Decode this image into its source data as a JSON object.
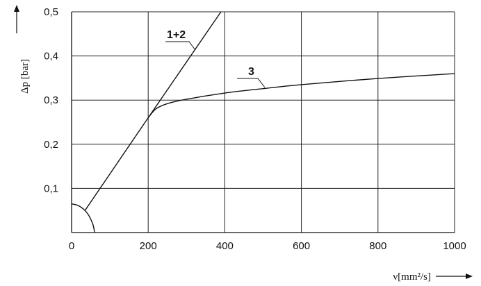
{
  "chart_data": {
    "type": "line",
    "title": "",
    "xlabel": "ν[mm²/s]",
    "ylabel": "Δp [bar]",
    "xlim": [
      0,
      1000
    ],
    "ylim": [
      0,
      0.5
    ],
    "x_ticks": [
      0,
      200,
      400,
      600,
      800,
      1000
    ],
    "x_tick_labels": [
      "0",
      "200",
      "400",
      "600",
      "800",
      "1000"
    ],
    "y_ticks": [
      0.1,
      0.2,
      0.3,
      0.4,
      0.5
    ],
    "y_tick_labels": [
      "0,1",
      "0,2",
      "0,3",
      "0,4",
      "0,5"
    ],
    "grid": true,
    "series": [
      {
        "name": "1+2",
        "x": [
          35,
          200,
          390
        ],
        "y": [
          0.05,
          0.26,
          0.5
        ]
      },
      {
        "name": "3",
        "x": [
          200,
          220,
          250,
          300,
          400,
          500,
          600,
          800,
          1000
        ],
        "y": [
          0.26,
          0.28,
          0.292,
          0.302,
          0.316,
          0.326,
          0.335,
          0.349,
          0.36
        ]
      },
      {
        "name": "",
        "x": [
          0,
          20,
          40,
          55,
          60
        ],
        "y": [
          0.065,
          0.06,
          0.045,
          0.02,
          0.0
        ]
      }
    ]
  }
}
